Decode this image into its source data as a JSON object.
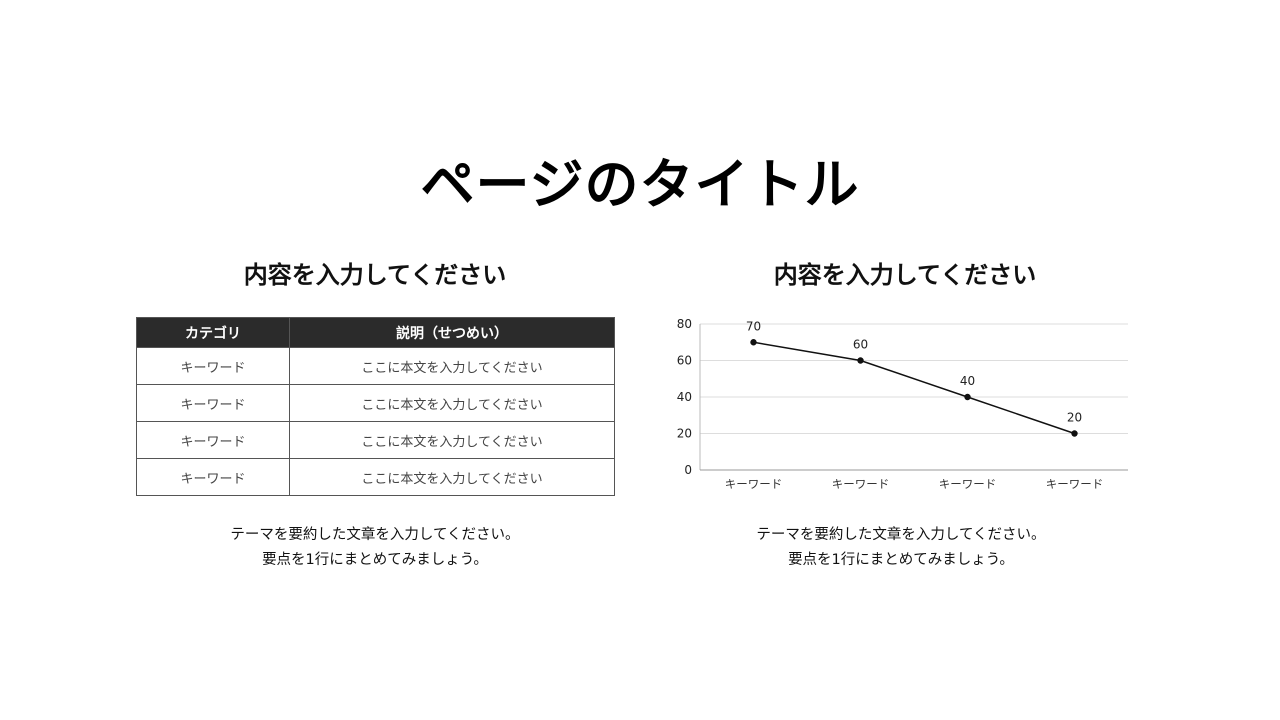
{
  "page": {
    "title": "ページのタイトル"
  },
  "left": {
    "heading": "内容を入力してください",
    "table": {
      "headers": [
        "カテゴリ",
        "説明（せつめい）"
      ],
      "rows": [
        [
          "キーワード",
          "ここに本文を入力してください"
        ],
        [
          "キーワード",
          "ここに本文を入力してください"
        ],
        [
          "キーワード",
          "ここに本文を入力してください"
        ],
        [
          "キーワード",
          "ここに本文を入力してください"
        ]
      ]
    },
    "summary": [
      "テーマを要約した文章を入力してください。",
      "要点を1行にまとめてみましょう。"
    ]
  },
  "right": {
    "heading": "内容を入力してください",
    "summary": [
      "テーマを要約した文章を入力してください。",
      "要点を1行にまとめてみましょう。"
    ]
  },
  "colors": {
    "header_bg": "#2b2b2b",
    "line": "#111111",
    "grid": "#dddddd"
  },
  "chart_data": {
    "type": "line",
    "title": "",
    "xlabel": "",
    "ylabel": "",
    "categories": [
      "キーワード",
      "キーワード",
      "キーワード",
      "キーワード"
    ],
    "series": [
      {
        "name": "",
        "values": [
          70,
          60,
          40,
          20
        ]
      }
    ],
    "ylim": [
      0,
      80
    ],
    "yticks": [
      0,
      20,
      40,
      60,
      80
    ],
    "grid": true,
    "data_labels": true,
    "legend": "none"
  }
}
